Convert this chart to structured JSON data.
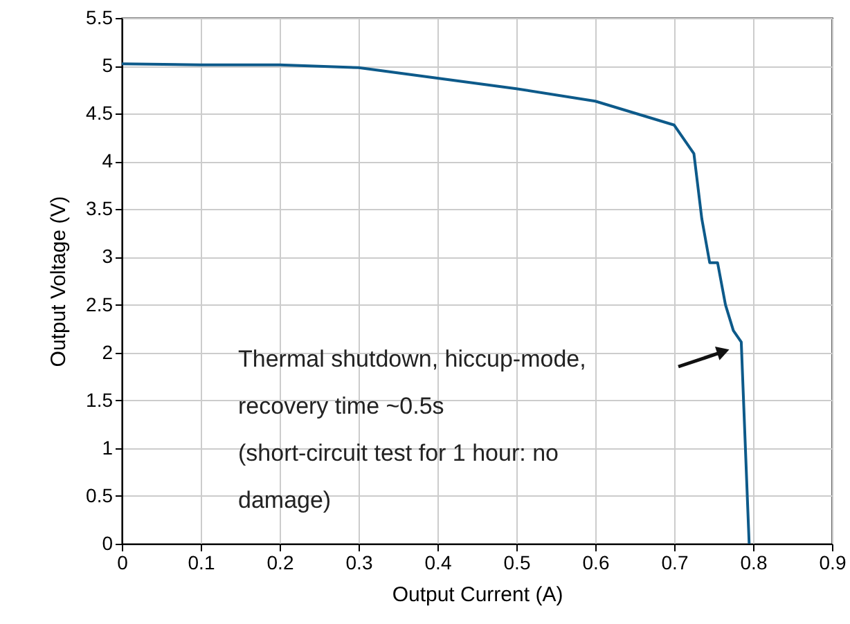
{
  "chart_data": {
    "type": "line",
    "xlabel": "Output Current (A)",
    "ylabel": "Output Voltage (V)",
    "x": [
      0,
      0.1,
      0.2,
      0.3,
      0.4,
      0.5,
      0.6,
      0.7,
      0.725,
      0.735,
      0.745,
      0.755,
      0.765,
      0.775,
      0.785,
      0.795
    ],
    "series": [
      {
        "color": "#0d5a8a",
        "values": [
          5.02,
          5.01,
          5.01,
          4.98,
          4.87,
          4.76,
          4.63,
          4.38,
          4.08,
          3.4,
          2.94,
          2.94,
          2.5,
          2.23,
          2.11,
          0
        ]
      }
    ],
    "xlim": [
      0,
      0.9
    ],
    "xticks": [
      0,
      0.1,
      0.2,
      0.3,
      0.4,
      0.5,
      0.6,
      0.7,
      0.8,
      0.9
    ],
    "ylim": [
      0,
      5.5
    ],
    "yticks": [
      0,
      0.5,
      1,
      1.5,
      2,
      2.5,
      3,
      3.5,
      4,
      4.5,
      5,
      5.5
    ],
    "grid": true,
    "marker": "none",
    "line_style": "solid",
    "annotations": [
      "Thermal shutdown, hiccup-mode,\nrecovery time ~0.5s\n(short-circuit test for 1 hour: no\ndamage)"
    ]
  }
}
